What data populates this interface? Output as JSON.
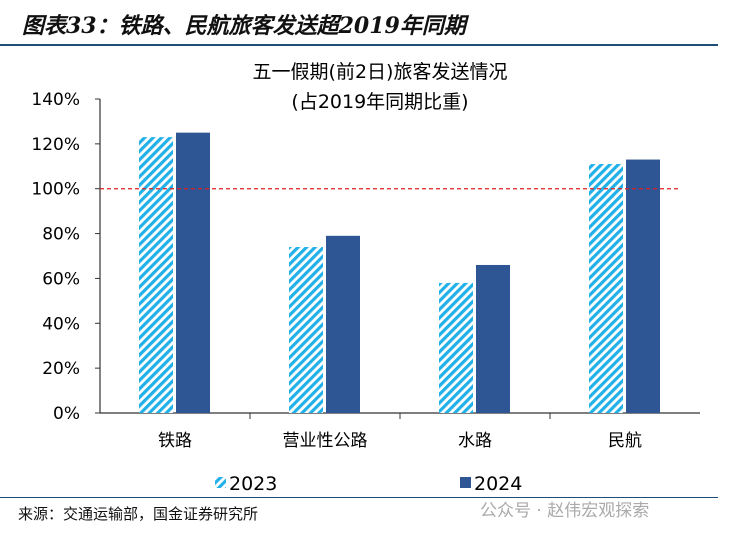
{
  "header": {
    "title": "图表33：铁路、民航旅客发送超2019年同期"
  },
  "source": "来源：交通运输部，国金证券研究所",
  "watermark": "公众号 · 赵伟宏观探索",
  "colors": {
    "s2023": "#21b1e8",
    "s2024": "#2e5594",
    "ref": "#e02020"
  },
  "chart_data": {
    "type": "bar",
    "title": "五一假期(前2日)旅客发送情况",
    "subtitle": "(占2019年同期比重)",
    "categories": [
      "铁路",
      "营业性公路",
      "水路",
      "民航"
    ],
    "series": [
      {
        "name": "2023",
        "values": [
          123,
          74,
          58,
          111
        ]
      },
      {
        "name": "2024",
        "values": [
          125,
          79,
          66,
          113
        ]
      }
    ],
    "ylim": [
      0,
      140
    ],
    "yticks": [
      "0%",
      "20%",
      "40%",
      "60%",
      "80%",
      "100%",
      "120%",
      "140%"
    ],
    "reference_line": 100,
    "legend": "bottom"
  }
}
